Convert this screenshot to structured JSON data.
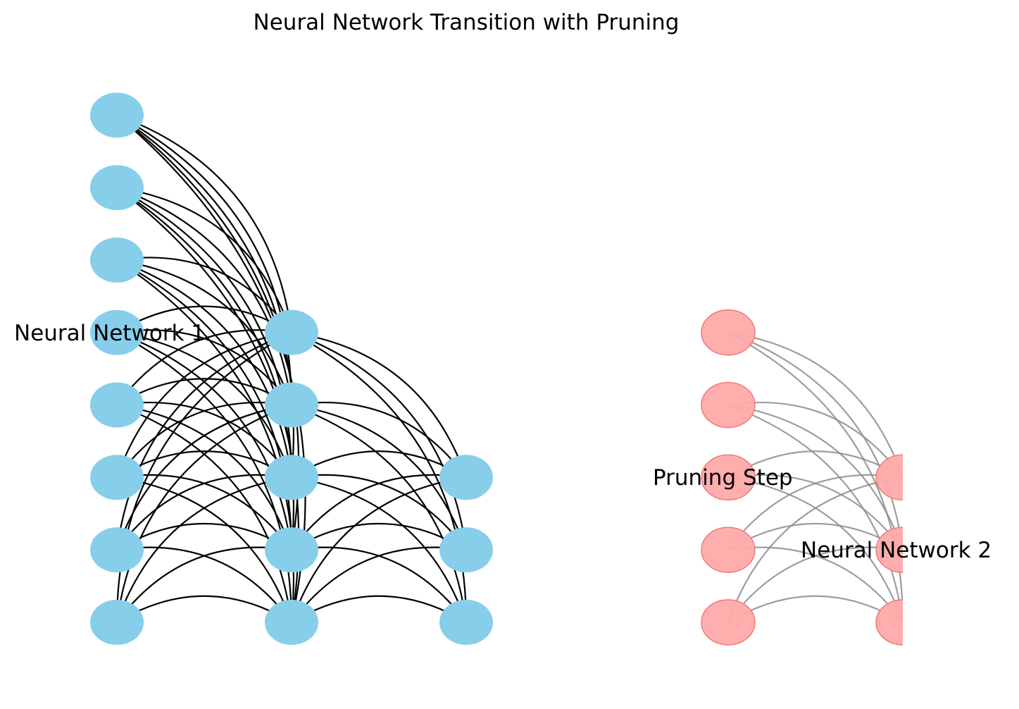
{
  "title": "Neural Network Transition with Pruning",
  "colors": {
    "network1_node": "#87ceeb",
    "network1_edge": "#000000",
    "network2_node": "#ffaaaa",
    "network2_node_border": "#f07a7a",
    "network2_edge": "#8c8c8c"
  },
  "network1": {
    "label": "Neural Network 1",
    "layers": [
      8,
      5,
      3
    ]
  },
  "pruning_label": "Pruning Step",
  "network2": {
    "label": "Neural Network 2",
    "layers": [
      5,
      3
    ]
  }
}
